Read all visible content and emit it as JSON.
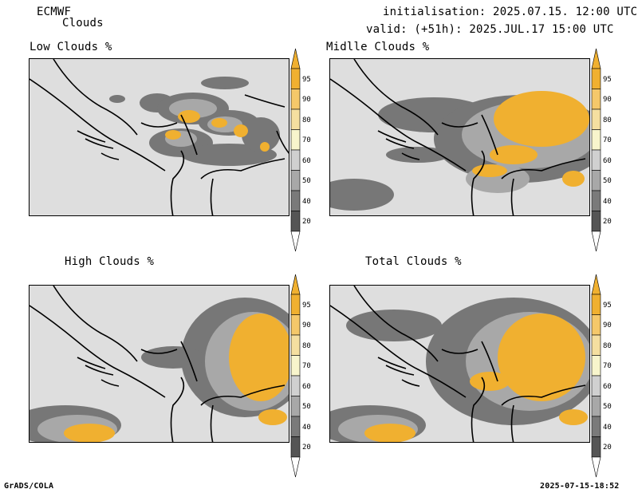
{
  "header": {
    "model": "ECMWF",
    "product": "Clouds",
    "init_line": "initialisation: 2025.07.15. 12:00 UTC",
    "valid_line": "valid: (+51h): 2025.JUL.17 15:00 UTC"
  },
  "panels": {
    "low": {
      "title": "Low Clouds %"
    },
    "middle": {
      "title": "Midlle Clouds %"
    },
    "high": {
      "title": "High Clouds %"
    },
    "total": {
      "title": "Total Clouds %"
    }
  },
  "colorbar": {
    "levels": [
      "95",
      "90",
      "80",
      "70",
      "60",
      "50",
      "40",
      "20"
    ],
    "colors": [
      "#f0b030",
      "#f5c86a",
      "#f5dfa0",
      "#f8f5cc",
      "#d0d0d0",
      "#a8a8a8",
      "#7a7a7a",
      "#555555"
    ]
  },
  "footer": {
    "left": "GrADS/COLA",
    "right": "2025-07-15-18:52"
  }
}
